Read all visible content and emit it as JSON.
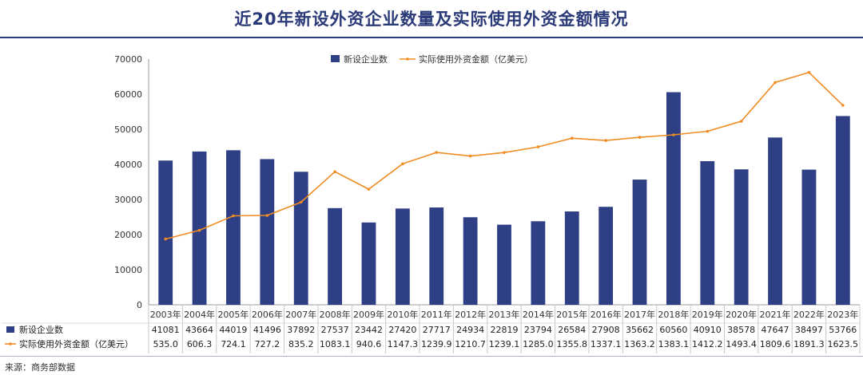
{
  "title": "近20年新设外资企业数量及实际使用外资金额情况",
  "source": "来源：商务部数据",
  "colors": {
    "bar": "#2e3f86",
    "line": "#f08c22",
    "title": "#2b3a78"
  },
  "chart_data": {
    "type": "bar+line",
    "categories": [
      "2003年",
      "2004年",
      "2005年",
      "2006年",
      "2007年",
      "2008年",
      "2009年",
      "2010年",
      "2011年",
      "2012年",
      "2013年",
      "2014年",
      "2015年",
      "2016年",
      "2017年",
      "2018年",
      "2019年",
      "2020年",
      "2021年",
      "2022年",
      "2023年"
    ],
    "ylim": [
      0,
      70000
    ],
    "yticks": [
      0,
      10000,
      20000,
      30000,
      40000,
      50000,
      60000,
      70000
    ],
    "legend_position": "top-center",
    "series": [
      {
        "name": "新设企业数",
        "kind": "bar",
        "values": [
          41081,
          43664,
          44019,
          41496,
          37892,
          27537,
          23442,
          27420,
          27717,
          24934,
          22819,
          23794,
          26584,
          27908,
          35662,
          60560,
          40910,
          38578,
          47647,
          38497,
          53766
        ],
        "labels": [
          "41081",
          "43664",
          "44019",
          "41496",
          "37892",
          "27537",
          "23442",
          "27420",
          "27717",
          "24934",
          "22819",
          "23794",
          "26584",
          "27908",
          "35662",
          "60560",
          "40910",
          "38578",
          "47647",
          "38497",
          "53766"
        ]
      },
      {
        "name": "实际使用外资金额（亿美元）",
        "kind": "line",
        "values": [
          535.0,
          606.3,
          724.1,
          727.2,
          835.2,
          1083.1,
          940.6,
          1147.3,
          1239.9,
          1210.7,
          1239.1,
          1285.0,
          1355.8,
          1337.1,
          1363.2,
          1383.1,
          1412.2,
          1493.4,
          1809.6,
          1891.3,
          1623.5
        ],
        "labels": [
          "535.0",
          "606.3",
          "724.1",
          "727.2",
          "835.2",
          "1083.1",
          "940.6",
          "1147.3",
          "1239.9",
          "1210.7",
          "1239.1",
          "1285.0",
          "1355.8",
          "1337.1",
          "1363.2",
          "1383.1",
          "1412.2",
          "1493.4",
          "1809.6",
          "1891.3",
          "1623.5"
        ],
        "line_scale_factor": 35
      }
    ]
  }
}
